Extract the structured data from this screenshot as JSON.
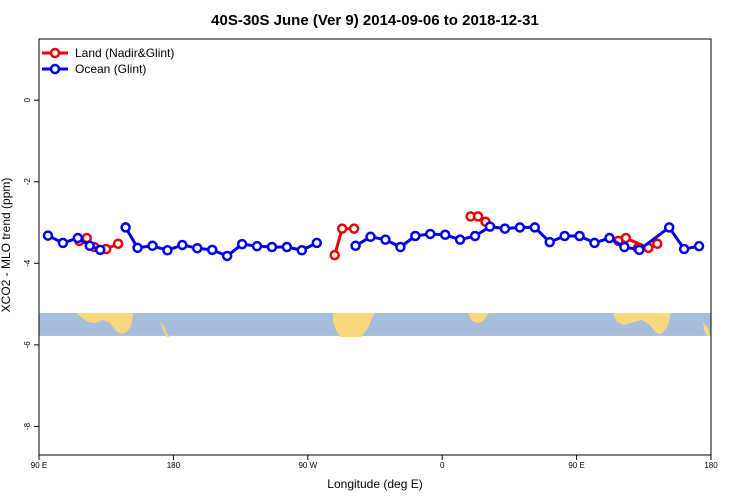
{
  "chart_data": {
    "type": "line",
    "title": "40S-30S June (Ver 9)   2014-09-06 to 2018-12-31",
    "xlabel": "Longitude (deg E)",
    "ylabel": "XCO2 - MLO trend (ppm)",
    "xlim": [
      90,
      540
    ],
    "ylim": [
      -8.7,
      1.5
    ],
    "x_ticks": [
      {
        "value": 90,
        "label": "90 E"
      },
      {
        "value": 180,
        "label": "180"
      },
      {
        "value": 270,
        "label": "90 W"
      },
      {
        "value": 360,
        "label": "0"
      },
      {
        "value": 450,
        "label": "90 E"
      },
      {
        "value": 540,
        "label": "180"
      }
    ],
    "y_ticks": [
      {
        "value": 0,
        "label": "0"
      },
      {
        "value": -2,
        "label": "-2"
      },
      {
        "value": -4,
        "label": "-4"
      },
      {
        "value": -6,
        "label": "-6"
      },
      {
        "value": -8,
        "label": "-8"
      }
    ],
    "legend_position": "top-left",
    "map_band": {
      "y_top": -5.22,
      "y_bottom": -5.78,
      "ocean_color": "#a6bddb",
      "land_color": "#f8d77e"
    },
    "series": [
      {
        "name": "Land (Nadir&Glint)",
        "color": "#e8000b",
        "segments": [
          [
            [
              117,
              -3.45
            ],
            [
              122,
              -3.38
            ],
            [
              127,
              -3.6
            ],
            [
              135,
              -3.65
            ],
            [
              143,
              -3.52
            ]
          ],
          [
            [
              288,
              -3.8
            ],
            [
              293,
              -3.15
            ],
            [
              301,
              -3.15
            ]
          ],
          [
            [
              379,
              -2.85
            ],
            [
              384,
              -2.85
            ],
            [
              389,
              -2.98
            ]
          ],
          [
            [
              478,
              -3.45
            ],
            [
              483,
              -3.38
            ],
            [
              498,
              -3.62
            ],
            [
              504,
              -3.52
            ]
          ],
          [
            [
              491,
              -3.63
            ],
            [
              498,
              -3.62
            ]
          ]
        ]
      },
      {
        "name": "Ocean (Glint)",
        "color": "#0000e8",
        "segments": [
          [
            [
              96,
              -3.32
            ],
            [
              106,
              -3.5
            ],
            [
              116,
              -3.38
            ],
            [
              124,
              -3.57
            ],
            [
              131,
              -3.67
            ]
          ],
          [
            [
              148,
              -3.12
            ],
            [
              156,
              -3.62
            ],
            [
              166,
              -3.57
            ],
            [
              176,
              -3.68
            ],
            [
              186,
              -3.55
            ],
            [
              196,
              -3.63
            ],
            [
              206,
              -3.67
            ],
            [
              216,
              -3.82
            ],
            [
              226,
              -3.53
            ],
            [
              236,
              -3.58
            ],
            [
              246,
              -3.6
            ],
            [
              256,
              -3.6
            ],
            [
              266,
              -3.68
            ],
            [
              276,
              -3.5
            ]
          ],
          [
            [
              302,
              -3.57
            ],
            [
              312,
              -3.35
            ],
            [
              322,
              -3.42
            ],
            [
              332,
              -3.6
            ],
            [
              342,
              -3.33
            ],
            [
              352,
              -3.28
            ],
            [
              362,
              -3.3
            ],
            [
              372,
              -3.42
            ],
            [
              382,
              -3.33
            ],
            [
              392,
              -3.1
            ],
            [
              402,
              -3.15
            ],
            [
              412,
              -3.12
            ],
            [
              422,
              -3.12
            ],
            [
              432,
              -3.48
            ],
            [
              442,
              -3.33
            ],
            [
              452,
              -3.33
            ],
            [
              462,
              -3.5
            ],
            [
              472,
              -3.38
            ],
            [
              482,
              -3.6
            ],
            [
              492,
              -3.67
            ],
            [
              512,
              -3.12
            ],
            [
              522,
              -3.65
            ],
            [
              532,
              -3.58
            ]
          ]
        ]
      }
    ]
  }
}
